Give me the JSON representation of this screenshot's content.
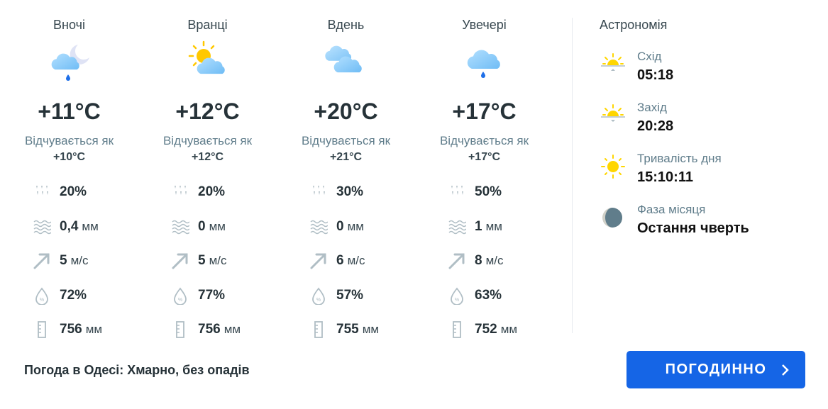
{
  "periods": [
    {
      "label": "Вночі",
      "icon": "night-cloud-rain-icon",
      "temp": "+11°C",
      "feels_label": "Відчувається як",
      "feels": "+10°C",
      "precip_prob": "20%",
      "precip": "0,4",
      "precip_unit": "мм",
      "wind": "5",
      "wind_unit": "м/с",
      "humidity": "72%",
      "pressure": "756",
      "pressure_unit": "мм"
    },
    {
      "label": "Вранці",
      "icon": "sun-cloud-icon",
      "temp": "+12°C",
      "feels_label": "Відчувається як",
      "feels": "+12°C",
      "precip_prob": "20%",
      "precip": "0",
      "precip_unit": "мм",
      "wind": "5",
      "wind_unit": "м/с",
      "humidity": "77%",
      "pressure": "756",
      "pressure_unit": "мм"
    },
    {
      "label": "Вдень",
      "icon": "cloudy-icon",
      "temp": "+20°C",
      "feels_label": "Відчувається як",
      "feels": "+21°C",
      "precip_prob": "30%",
      "precip": "0",
      "precip_unit": "мм",
      "wind": "6",
      "wind_unit": "м/с",
      "humidity": "57%",
      "pressure": "755",
      "pressure_unit": "мм"
    },
    {
      "label": "Увечері",
      "icon": "cloud-rain-icon",
      "temp": "+17°C",
      "feels_label": "Відчувається як",
      "feels": "+17°C",
      "precip_prob": "50%",
      "precip": "1",
      "precip_unit": "мм",
      "wind": "8",
      "wind_unit": "м/с",
      "humidity": "63%",
      "pressure": "752",
      "pressure_unit": "мм"
    }
  ],
  "astronomy": {
    "title": "Астрономія",
    "items": [
      {
        "label": "Схід",
        "value": "05:18",
        "icon": "sunrise-icon"
      },
      {
        "label": "Захід",
        "value": "20:28",
        "icon": "sunset-icon"
      },
      {
        "label": "Тривалість дня",
        "value": "15:10:11",
        "icon": "sun-icon"
      },
      {
        "label": "Фаза місяця",
        "value": "Остання чверть",
        "icon": "moon-phase-icon"
      }
    ]
  },
  "summary": "Погода в Одесі: Хмарно, без опадів",
  "hourly_button": "ПОГОДИННО",
  "colors": {
    "accent": "#1565e6",
    "sun": "#ffd600",
    "cloud": "#90caf9",
    "icon_gray": "#b0bec5"
  }
}
